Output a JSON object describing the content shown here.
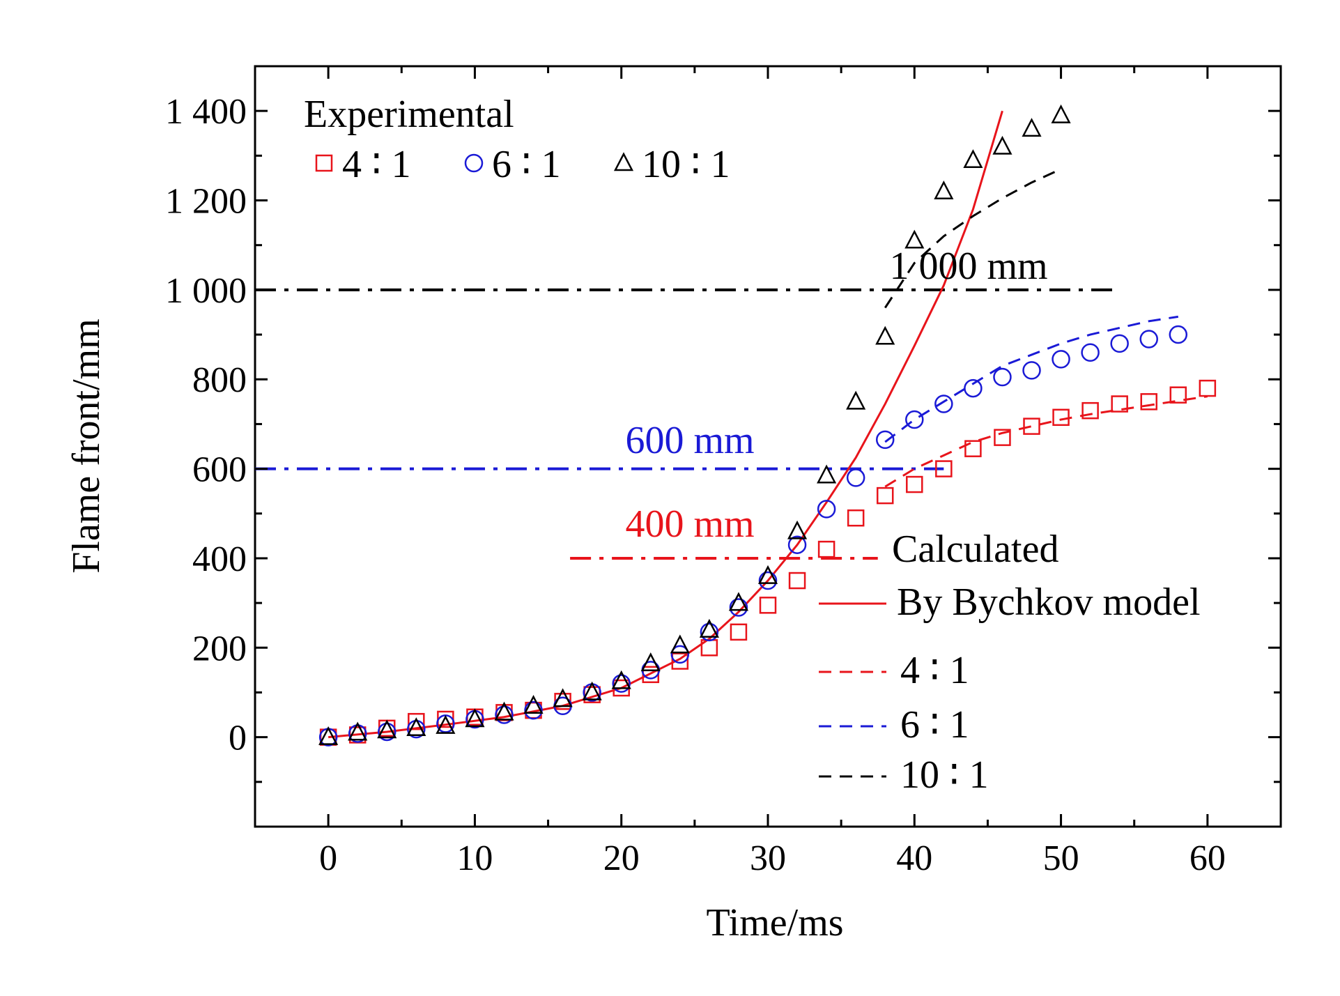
{
  "chart_data": {
    "type": "scatter",
    "xlabel": "Time/ms",
    "ylabel": "Flame front/mm",
    "xlim": [
      -5,
      65
    ],
    "ylim": [
      -200,
      1500
    ],
    "x_ticks": [
      0,
      10,
      20,
      30,
      40,
      50,
      60
    ],
    "y_ticks": [
      0,
      200,
      400,
      600,
      800,
      1000,
      1200,
      1400
    ],
    "y_tick_labels": [
      "0",
      "200",
      "400",
      "600",
      "800",
      "1 000",
      "1 200",
      "1 400"
    ],
    "experimental_title": "Experimental",
    "calculated_title": "Calculated",
    "experimental_series": [
      {
        "name": "4 ∶ 1",
        "marker": "square",
        "color": "#e8141b",
        "x": [
          0,
          2,
          4,
          6,
          8,
          10,
          12,
          14,
          16,
          18,
          20,
          22,
          24,
          26,
          28,
          30,
          32,
          34,
          36,
          38,
          40,
          42,
          44,
          46,
          48,
          50,
          52,
          54,
          56,
          58,
          60
        ],
        "y": [
          0,
          5,
          20,
          35,
          40,
          45,
          55,
          60,
          80,
          95,
          110,
          140,
          170,
          200,
          235,
          295,
          350,
          420,
          490,
          540,
          565,
          600,
          645,
          670,
          695,
          715,
          730,
          745,
          750,
          765,
          780
        ]
      },
      {
        "name": "6 ∶ 1",
        "marker": "circle",
        "color": "#1a1ad6",
        "x": [
          0,
          2,
          4,
          6,
          8,
          10,
          12,
          14,
          16,
          18,
          20,
          22,
          24,
          26,
          28,
          30,
          32,
          34,
          36,
          38,
          40,
          42,
          44,
          46,
          48,
          50,
          52,
          54,
          56,
          58
        ],
        "y": [
          0,
          8,
          12,
          18,
          30,
          40,
          50,
          60,
          70,
          100,
          120,
          150,
          185,
          235,
          290,
          350,
          430,
          510,
          580,
          665,
          710,
          745,
          780,
          805,
          820,
          845,
          860,
          880,
          890,
          900
        ]
      },
      {
        "name": "10 ∶ 1",
        "marker": "triangle",
        "color": "#000000",
        "x": [
          0,
          2,
          4,
          6,
          8,
          10,
          12,
          14,
          16,
          18,
          20,
          22,
          24,
          26,
          28,
          30,
          32,
          34,
          36,
          38,
          40,
          42,
          44,
          46,
          48,
          50
        ],
        "y": [
          0,
          10,
          15,
          20,
          25,
          40,
          55,
          70,
          85,
          100,
          125,
          165,
          205,
          240,
          300,
          360,
          460,
          585,
          750,
          895,
          1110,
          1220,
          1290,
          1320,
          1360,
          1390
        ]
      }
    ],
    "calculated_series": [
      {
        "name": "By Bychkov model",
        "style": "solid",
        "color": "#e8141b",
        "x": [
          0,
          4,
          8,
          12,
          16,
          20,
          24,
          26,
          28,
          30,
          32,
          34,
          36,
          38,
          40,
          42,
          44,
          45,
          46
        ],
        "y": [
          0,
          12,
          28,
          45,
          70,
          110,
          175,
          220,
          280,
          350,
          430,
          525,
          625,
          745,
          875,
          1010,
          1180,
          1290,
          1400
        ]
      },
      {
        "name": "4 ∶ 1",
        "style": "dashed",
        "color": "#e8141b",
        "x": [
          38,
          40,
          42,
          44,
          46,
          48,
          50,
          52,
          54,
          56,
          58,
          60
        ],
        "y": [
          560,
          600,
          630,
          660,
          680,
          695,
          710,
          722,
          732,
          742,
          752,
          762
        ]
      },
      {
        "name": "6 ∶ 1",
        "style": "dashed",
        "color": "#1a1ad6",
        "x": [
          38,
          40,
          42,
          44,
          46,
          48,
          50,
          52,
          54,
          56,
          58
        ],
        "y": [
          660,
          710,
          750,
          790,
          830,
          855,
          880,
          900,
          915,
          930,
          940
        ]
      },
      {
        "name": "10 ∶ 1",
        "style": "dashed",
        "color": "#000000",
        "x": [
          38,
          40,
          42,
          44,
          46,
          48,
          50
        ],
        "y": [
          960,
          1060,
          1120,
          1165,
          1205,
          1240,
          1270
        ]
      }
    ],
    "reference_lines": [
      {
        "label": "1 000 mm",
        "y": 1000,
        "x_start": -5,
        "x_end": 54,
        "color": "#000000",
        "style": "dash-dot"
      },
      {
        "label": "600 mm",
        "y": 600,
        "x_start": -5,
        "x_end": 42,
        "color": "#1a1ad6",
        "style": "dash-dot"
      },
      {
        "label": "400 mm",
        "y": 400,
        "x_start": 16.5,
        "x_end": 37.5,
        "color": "#e8141b",
        "style": "dash-dot"
      }
    ],
    "grid": false,
    "legend_position": "upper-left (experimental), lower-right (calculated)"
  }
}
